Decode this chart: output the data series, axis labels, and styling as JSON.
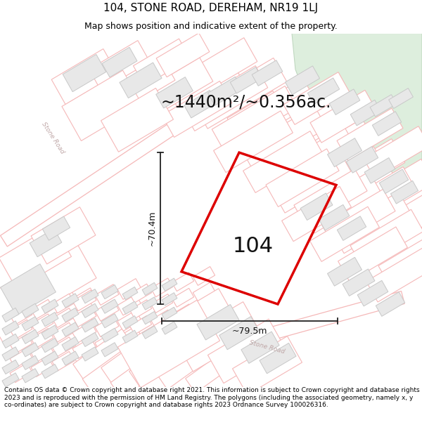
{
  "title": "104, STONE ROAD, DEREHAM, NR19 1LJ",
  "subtitle": "Map shows position and indicative extent of the property.",
  "area_text": "~1440m²/~0.356ac.",
  "label_104": "104",
  "dim_width": "~79.5m",
  "dim_height": "~70.4m",
  "footer": "Contains OS data © Crown copyright and database right 2021. This information is subject to Crown copyright and database rights 2023 and is reproduced with the permission of HM Land Registry. The polygons (including the associated geometry, namely x, y co-ordinates) are subject to Crown copyright and database rights 2023 Ordnance Survey 100026316.",
  "bg_color": "#ffffff",
  "map_bg": "#ffffff",
  "cadastral_line": "#f5b8b8",
  "building_fill": "#e8e8e8",
  "building_outline": "#c8c8c8",
  "green_area": "#ddeedd",
  "green_outline": "#c0d8c0",
  "property_color": "#dd0000",
  "dim_color": "#222222",
  "road_label_color": "#c0a8a8",
  "title_fontsize": 11,
  "subtitle_fontsize": 9,
  "area_fontsize": 17,
  "label_fontsize": 22,
  "footer_fontsize": 6.5,
  "dim_fontsize": 9
}
